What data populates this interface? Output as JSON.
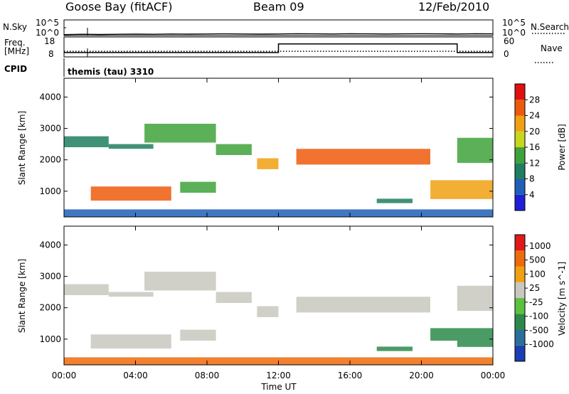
{
  "header": {
    "station": "Goose Bay (fitACF)",
    "beam": "Beam 09",
    "date": "12/Feb/2010"
  },
  "noise_panel": {
    "left_label": "N.Sky",
    "right_label": "N.Search",
    "left_ticks": [
      "10^5",
      "10^0"
    ],
    "right_ticks": [
      "10^5",
      "10^0"
    ]
  },
  "freq_panel": {
    "left_label_1": "Freq.",
    "left_label_2": "[MHz]",
    "right_label": "Nave",
    "left_ticks": [
      "18",
      "8"
    ],
    "right_ticks": [
      "60",
      "0"
    ]
  },
  "cpid": {
    "label": "CPID",
    "program": "themis (tau) 3310"
  },
  "power_panel": {
    "ylabel": "Slant Range [km]",
    "yticks": [
      "1000",
      "2000",
      "3000",
      "4000"
    ],
    "colorbar_label": "Power [dB]",
    "colorbar_ticks": [
      "4",
      "8",
      "12",
      "16",
      "20",
      "24",
      "28"
    ],
    "colorbar_colors": [
      "#1f1fd8",
      "#1f5fb8",
      "#207e60",
      "#3fa23b",
      "#c8d61e",
      "#f0a012",
      "#ee5a0c",
      "#e01010"
    ]
  },
  "velocity_panel": {
    "ylabel": "Slant Range [km]",
    "colorbar_label": "Velocity [m s^-1]",
    "colorbar_ticks": [
      "1000",
      "500",
      "100",
      "25",
      "-25",
      "-100",
      "-500",
      "-1000"
    ],
    "colorbar_colors": [
      "#1b3fb0",
      "#2a6f9a",
      "#2b8a4a",
      "#5cc23c",
      "#c8c8c0",
      "#f0a012",
      "#ee6a0c",
      "#e01818"
    ]
  },
  "xaxis": {
    "label": "Time UT",
    "ticks": [
      "00:00",
      "04:00",
      "08:00",
      "12:00",
      "16:00",
      "20:00",
      "00:00"
    ]
  },
  "chart_data": {
    "type": "heatmap",
    "x_range_hours": [
      0,
      24
    ],
    "y_range_km": [
      180,
      4600
    ],
    "noise_sky_log10": [
      0.3,
      0.4,
      0.35,
      0.4,
      0.45,
      0.4,
      0.5,
      0.45,
      0.5,
      0.55,
      0.5,
      0.45,
      0.5,
      0.6,
      0.55,
      0.5,
      0.6,
      0.55,
      0.5,
      0.55,
      0.6,
      0.55,
      0.5,
      0.6,
      0.55
    ],
    "frequency_mhz": {
      "x": [
        0,
        12,
        12,
        22,
        22,
        24
      ],
      "y": [
        10.2,
        10.2,
        14.5,
        14.5,
        10.2,
        10.2
      ]
    },
    "nave": {
      "x": [
        0,
        24
      ],
      "y": [
        17,
        17
      ]
    },
    "power_regions": [
      {
        "x": [
          0,
          2.5
        ],
        "y": [
          2400,
          2750
        ],
        "level": 8
      },
      {
        "x": [
          2.5,
          5
        ],
        "y": [
          2350,
          2500
        ],
        "level": 10
      },
      {
        "x": [
          4.5,
          8.5
        ],
        "y": [
          2550,
          3150
        ],
        "level": 14
      },
      {
        "x": [
          8.5,
          10.5
        ],
        "y": [
          2150,
          2500
        ],
        "level": 12
      },
      {
        "x": [
          10.8,
          12
        ],
        "y": [
          1700,
          2050
        ],
        "level": 20
      },
      {
        "x": [
          13,
          20.5
        ],
        "y": [
          1850,
          2350
        ],
        "level": 24
      },
      {
        "x": [
          1.5,
          6
        ],
        "y": [
          700,
          1150
        ],
        "level": 26
      },
      {
        "x": [
          6.5,
          8.5
        ],
        "y": [
          950,
          1300
        ],
        "level": 14
      },
      {
        "x": [
          20.5,
          24
        ],
        "y": [
          750,
          1350
        ],
        "level": 22
      },
      {
        "x": [
          22,
          24
        ],
        "y": [
          1900,
          2700
        ],
        "level": 14
      },
      {
        "x": [
          17.5,
          19.5
        ],
        "y": [
          620,
          760
        ],
        "level": 10
      },
      {
        "x": [
          0,
          24
        ],
        "y": [
          180,
          420
        ],
        "level": 6
      }
    ],
    "velocity_regions": [
      {
        "x": [
          0,
          2.5
        ],
        "y": [
          2400,
          2750
        ],
        "level": 0
      },
      {
        "x": [
          2.5,
          5
        ],
        "y": [
          2350,
          2500
        ],
        "level": 0
      },
      {
        "x": [
          4.5,
          8.5
        ],
        "y": [
          2550,
          3150
        ],
        "level": 0
      },
      {
        "x": [
          8.5,
          10.5
        ],
        "y": [
          2150,
          2500
        ],
        "level": 0
      },
      {
        "x": [
          10.8,
          12
        ],
        "y": [
          1700,
          2050
        ],
        "level": 0
      },
      {
        "x": [
          13,
          20.5
        ],
        "y": [
          1850,
          2350
        ],
        "level": 0
      },
      {
        "x": [
          1.5,
          6
        ],
        "y": [
          700,
          1150
        ],
        "level": 0
      },
      {
        "x": [
          6.5,
          8.5
        ],
        "y": [
          950,
          1300
        ],
        "level": 0
      },
      {
        "x": [
          20.5,
          24
        ],
        "y": [
          950,
          1350
        ],
        "level": 120
      },
      {
        "x": [
          22,
          24
        ],
        "y": [
          750,
          950
        ],
        "level": 150
      },
      {
        "x": [
          22,
          24
        ],
        "y": [
          1900,
          2700
        ],
        "level": 0
      },
      {
        "x": [
          17.5,
          19.5
        ],
        "y": [
          620,
          760
        ],
        "level": 120
      },
      {
        "x": [
          0,
          24
        ],
        "y": [
          180,
          420
        ],
        "level": -120
      }
    ]
  }
}
